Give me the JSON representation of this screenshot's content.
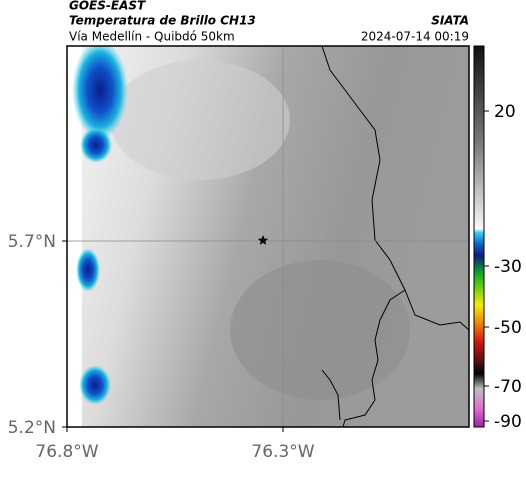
{
  "header": {
    "satellite": "GOES-EAST",
    "product": "Temperatura de Brillo CH13",
    "route": "Vía Medellín - Quibdó 50km",
    "source": "SIATA",
    "timestamp": "2024-07-14 00:19"
  },
  "axes": {
    "latitudes": [
      "5.7°N",
      "5.2°N"
    ],
    "longitudes": [
      "76.8°W",
      "76.3°W"
    ]
  },
  "colorbar": {
    "ticks": [
      20,
      -30,
      -50,
      -70,
      -90
    ]
  }
}
